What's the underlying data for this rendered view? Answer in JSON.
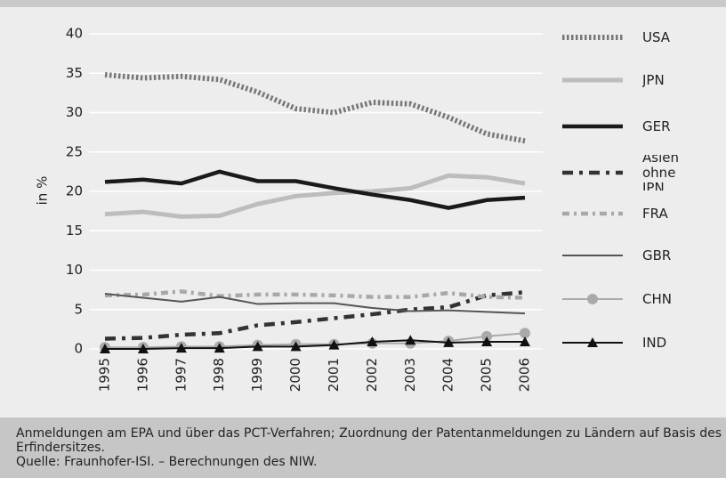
{
  "chart_data": {
    "type": "line",
    "ylabel": "in %",
    "categories": [
      "1995",
      "1996",
      "1997",
      "1998",
      "1999",
      "2000",
      "2001",
      "2002",
      "2003",
      "2004",
      "2005",
      "2006"
    ],
    "ylim": [
      0,
      40
    ],
    "yticks": [
      0,
      5,
      10,
      15,
      20,
      25,
      30,
      35,
      40
    ],
    "grid": true,
    "legend": "right",
    "series": [
      {
        "name": "USA",
        "color": "#777777",
        "values": [
          34.8,
          34.4,
          34.6,
          34.2,
          32.6,
          30.5,
          30.0,
          31.3,
          31.1,
          29.4,
          27.3,
          26.4
        ]
      },
      {
        "name": "JPN",
        "color": "#bdbdbd",
        "values": [
          17.1,
          17.4,
          16.8,
          16.9,
          18.4,
          19.4,
          19.8,
          20.0,
          20.4,
          22.0,
          21.8,
          21.0
        ]
      },
      {
        "name": "GER",
        "color": "#1a1a1a",
        "values": [
          21.2,
          21.5,
          21.0,
          22.5,
          21.3,
          21.3,
          20.4,
          19.6,
          18.9,
          17.9,
          18.9,
          19.2
        ]
      },
      {
        "name": "Asien ohne JPN",
        "color": "#333333",
        "values": [
          1.3,
          1.4,
          1.8,
          2.0,
          3.0,
          3.4,
          3.9,
          4.4,
          5.0,
          5.3,
          6.8,
          7.2
        ]
      },
      {
        "name": "FRA",
        "color": "#a8a8a8",
        "values": [
          6.8,
          6.9,
          7.3,
          6.7,
          6.9,
          6.9,
          6.8,
          6.6,
          6.6,
          7.1,
          6.6,
          6.5
        ]
      },
      {
        "name": "GBR",
        "color": "#555555",
        "values": [
          7.0,
          6.5,
          6.0,
          6.6,
          5.7,
          5.8,
          5.8,
          5.2,
          4.8,
          4.9,
          4.7,
          4.5
        ]
      },
      {
        "name": "CHN",
        "color": "#aaaaaa",
        "marker": "circle",
        "values": [
          0.2,
          0.2,
          0.3,
          0.3,
          0.5,
          0.6,
          0.6,
          0.7,
          0.7,
          1.0,
          1.6,
          2.0
        ]
      },
      {
        "name": "IND",
        "color": "#111111",
        "marker": "triangle",
        "values": [
          0.0,
          0.0,
          0.1,
          0.1,
          0.3,
          0.3,
          0.5,
          0.9,
          1.1,
          0.8,
          0.9,
          0.9
        ]
      }
    ]
  },
  "footer": {
    "note": "Anmeldungen am EPA und über das PCT-Verfahren; Zuordnung der Patentanmeldungen zu Ländern auf Basis des Erfindersitzes.",
    "source": "Quelle: Fraunhofer-ISI. – Berechnungen des NIW."
  }
}
